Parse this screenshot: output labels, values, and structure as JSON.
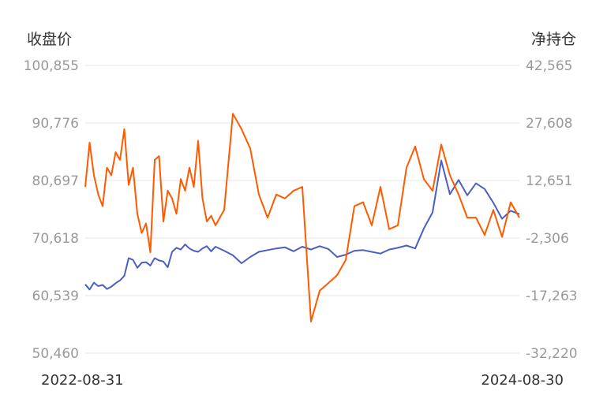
{
  "chart_data": {
    "type": "line",
    "title": "",
    "left_axis": {
      "label": "收盘价",
      "ticks": [
        "100,855",
        "90,776",
        "80,697",
        "70,618",
        "60,539",
        "50,460"
      ],
      "ylim": [
        50460,
        100855
      ]
    },
    "right_axis": {
      "label": "净持仓",
      "ticks": [
        "42,565",
        "27,608",
        "12,651",
        "-2,306",
        "-17,263",
        "-32,220"
      ],
      "ylim": [
        -32220,
        42565
      ]
    },
    "x_labels": {
      "start": "2022-08-31",
      "end": "2024-08-30"
    },
    "grid": true,
    "legend": "none",
    "colors": {
      "close": "#4a5fc1",
      "net_position": "#ff5a00"
    },
    "series": [
      {
        "key": "close",
        "axis": "left",
        "x": [
          0.0,
          0.01,
          0.02,
          0.03,
          0.04,
          0.05,
          0.06,
          0.07,
          0.08,
          0.09,
          0.1,
          0.11,
          0.12,
          0.13,
          0.14,
          0.15,
          0.16,
          0.17,
          0.18,
          0.19,
          0.2,
          0.21,
          0.22,
          0.23,
          0.24,
          0.25,
          0.26,
          0.27,
          0.28,
          0.29,
          0.3,
          0.32,
          0.34,
          0.36,
          0.38,
          0.4,
          0.42,
          0.44,
          0.46,
          0.48,
          0.5,
          0.52,
          0.54,
          0.56,
          0.58,
          0.6,
          0.62,
          0.64,
          0.66,
          0.68,
          0.7,
          0.72,
          0.74,
          0.76,
          0.78,
          0.8,
          0.82,
          0.84,
          0.86,
          0.88,
          0.9,
          0.92,
          0.94,
          0.96,
          0.98,
          1.0
        ],
        "values": [
          62500,
          61600,
          62800,
          62200,
          62400,
          61700,
          62100,
          62700,
          63200,
          64000,
          67100,
          66800,
          65400,
          66300,
          66400,
          65800,
          67100,
          66700,
          66500,
          65500,
          68200,
          68900,
          68600,
          69500,
          68800,
          68400,
          68200,
          68800,
          69200,
          68300,
          69100,
          68400,
          67600,
          66200,
          67300,
          68200,
          68500,
          68800,
          69000,
          68300,
          69100,
          68600,
          69200,
          68700,
          67300,
          67700,
          68400,
          68500,
          68200,
          67900,
          68600,
          68900,
          69300,
          68800,
          72300,
          75100,
          84200,
          78300,
          80800,
          78100,
          80200,
          79200,
          76800,
          74000,
          75400,
          74800
        ]
      },
      {
        "key": "net_position",
        "axis": "right",
        "x": [
          0.0,
          0.01,
          0.02,
          0.03,
          0.04,
          0.05,
          0.06,
          0.07,
          0.08,
          0.09,
          0.1,
          0.11,
          0.12,
          0.13,
          0.14,
          0.15,
          0.16,
          0.17,
          0.18,
          0.19,
          0.2,
          0.21,
          0.22,
          0.23,
          0.24,
          0.25,
          0.26,
          0.27,
          0.28,
          0.29,
          0.3,
          0.32,
          0.34,
          0.36,
          0.38,
          0.4,
          0.42,
          0.44,
          0.46,
          0.48,
          0.5,
          0.52,
          0.54,
          0.56,
          0.58,
          0.6,
          0.62,
          0.64,
          0.66,
          0.68,
          0.7,
          0.72,
          0.74,
          0.76,
          0.78,
          0.8,
          0.82,
          0.84,
          0.86,
          0.88,
          0.9,
          0.92,
          0.94,
          0.96,
          0.98,
          1.0
        ],
        "values": [
          11000,
          22500,
          14000,
          9000,
          6000,
          16000,
          14000,
          20000,
          18000,
          26000,
          11500,
          16000,
          4000,
          -1000,
          1500,
          -6000,
          18000,
          19000,
          2000,
          10000,
          8000,
          4000,
          13000,
          10000,
          16000,
          11000,
          23000,
          8000,
          2000,
          3500,
          1000,
          5000,
          30000,
          26000,
          21000,
          9000,
          3000,
          9000,
          8000,
          10000,
          11000,
          -24000,
          -16000,
          -14000,
          -12000,
          -8000,
          6000,
          7000,
          1000,
          11000,
          0,
          1000,
          16000,
          21500,
          13000,
          10000,
          22000,
          14000,
          9000,
          3000,
          3000,
          -1500,
          5000,
          -2000,
          7000,
          3000
        ]
      }
    ]
  }
}
